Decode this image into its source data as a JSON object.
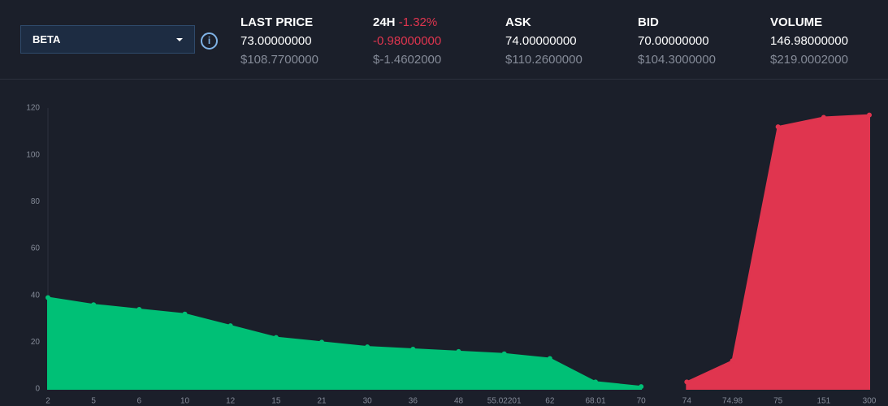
{
  "header": {
    "selector": "BETA",
    "stats": [
      {
        "label": "LAST PRICE",
        "value": "73.00000000",
        "usd": "$108.7700000"
      },
      {
        "label": "24H",
        "change": "-1.32%",
        "value": "-0.98000000",
        "usd": "$-1.4602000"
      },
      {
        "label": "ASK",
        "value": "74.00000000",
        "usd": "$110.2600000"
      },
      {
        "label": "BID",
        "value": "70.00000000",
        "usd": "$104.3000000"
      },
      {
        "label": "VOLUME",
        "value": "146.98000000",
        "usd": "$219.0002000"
      }
    ]
  },
  "chart_data": {
    "type": "area",
    "categories": [
      "2",
      "5",
      "6",
      "10",
      "12",
      "15",
      "21",
      "30",
      "36",
      "48",
      "55.02201",
      "62",
      "68.01",
      "70",
      "74",
      "74.98",
      "75",
      "151",
      "300"
    ],
    "series": [
      {
        "color": "#00c076",
        "values": [
          39,
          36,
          34,
          32,
          27,
          22,
          20,
          18,
          17,
          16,
          15,
          13,
          3,
          1,
          null,
          null,
          null,
          null,
          null
        ]
      },
      {
        "color": "#e0354f",
        "values": [
          null,
          null,
          null,
          null,
          null,
          null,
          null,
          null,
          null,
          null,
          null,
          null,
          null,
          null,
          3,
          12,
          112,
          116,
          117
        ]
      }
    ],
    "ylim": [
      0,
      120
    ],
    "yticks": [
      0,
      20,
      40,
      60,
      80,
      100,
      120
    ],
    "grid": false
  }
}
